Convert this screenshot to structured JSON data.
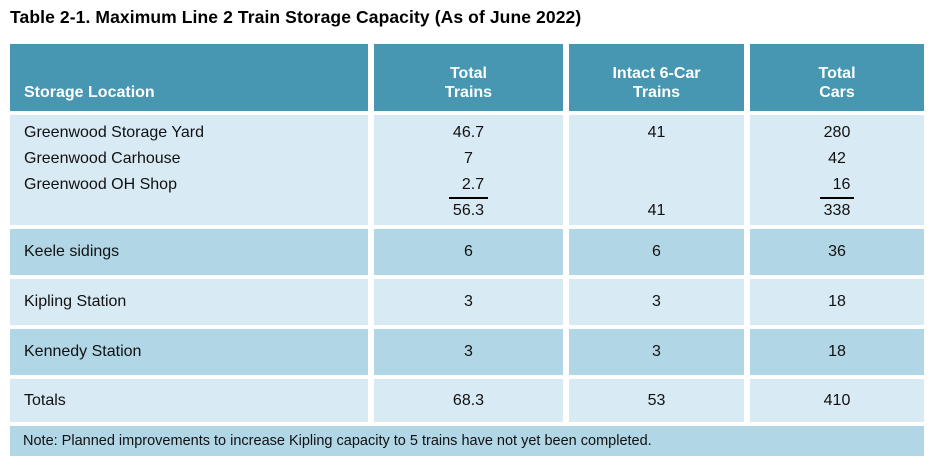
{
  "colors": {
    "header_bg": "#4796B2",
    "row_light": "#D8EAF3",
    "row_medium": "#B1D6E5",
    "header_text": "#FFFFFF",
    "body_text": "#111111",
    "page_bg": "#FFFFFF"
  },
  "title": "Table 2-1. Maximum Line 2 Train Storage Capacity (As of June 2022)",
  "table": {
    "columns": {
      "location": "Storage Location",
      "total_trains": "Total\nTrains",
      "intact_trains": "Intact 6-Car\nTrains",
      "total_cars": "Total\nCars"
    },
    "greenwood_group": {
      "rows": [
        {
          "location": "Greenwood Storage Yard",
          "total_trains": "46.7",
          "intact_trains": "41",
          "total_cars": "280"
        },
        {
          "location": "Greenwood Carhouse",
          "total_trains": "7",
          "intact_trains": "",
          "total_cars": "42"
        },
        {
          "location": "Greenwood OH Shop",
          "total_trains": "2.7",
          "intact_trains": "",
          "total_cars": "16",
          "sum_underline": true
        }
      ],
      "subtotal": {
        "total_trains": "56.3",
        "intact_trains": "41",
        "total_cars": "338"
      }
    },
    "rows": [
      {
        "location": "Keele sidings",
        "total_trains": "6",
        "intact_trains": "6",
        "total_cars": "36"
      },
      {
        "location": "Kipling Station",
        "total_trains": "3",
        "intact_trains": "3",
        "total_cars": "18"
      },
      {
        "location": "Kennedy Station",
        "total_trains": "3",
        "intact_trains": "3",
        "total_cars": "18"
      }
    ],
    "totals": {
      "location": "Totals",
      "total_trains": "68.3",
      "intact_trains": "53",
      "total_cars": "410"
    },
    "note": "Note: Planned improvements to increase Kipling capacity to 5 trains have not yet been completed."
  }
}
